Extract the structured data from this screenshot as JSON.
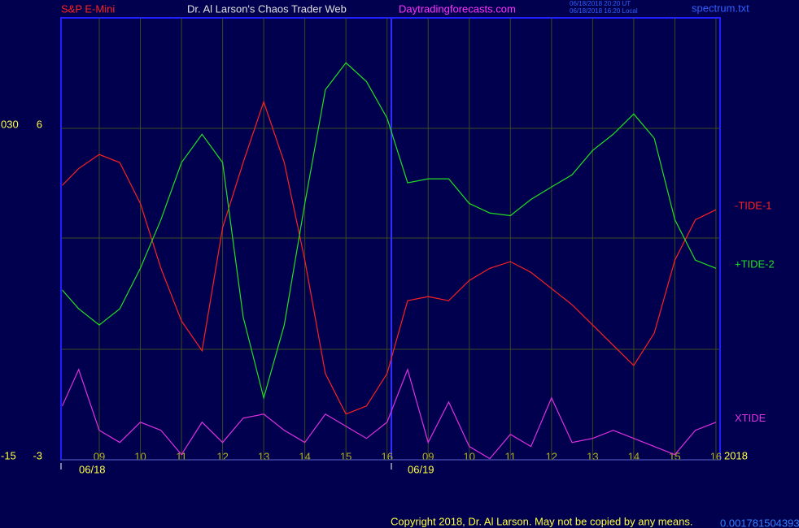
{
  "chart_data": {
    "type": "line",
    "header": [
      "S&P E-Mini",
      "Dr. Al Larson's Chaos Trader Web",
      "Daytradingforecasts.com"
    ],
    "timestamps": [
      "06/18/2018 20:20 UT",
      "06/18/2018 16:20 Local"
    ],
    "file": "spectrum.txt",
    "footer": "Copyright 2018, Dr. Al Larson. May not be copied by any means.",
    "footer_value": "0.0017815043931",
    "year": "2018",
    "day_labels": [
      "06/18",
      "06/19"
    ],
    "x": [
      8.1,
      8.5,
      9,
      9.5,
      10,
      10.5,
      11,
      11.5,
      12,
      12.5,
      13,
      13.5,
      14,
      14.5,
      15,
      15.5,
      16,
      16.5,
      17,
      17.5,
      18,
      18.5,
      19,
      19.5,
      20,
      20.5,
      21,
      21.5,
      22,
      22.5,
      23,
      23.5,
      24
    ],
    "series": [
      {
        "name": "-TIDE-1",
        "color": "#ff2020",
        "values": [
          4.45,
          4.91,
          5.29,
          5.07,
          3.96,
          2.2,
          0.77,
          -0.04,
          3.3,
          5.07,
          6.72,
          5.07,
          2.42,
          -0.66,
          -1.76,
          -1.54,
          -0.66,
          1.32,
          1.43,
          1.32,
          1.87,
          2.2,
          2.38,
          2.09,
          1.65,
          1.21,
          0.66,
          0.11,
          -0.44,
          0.44,
          2.42,
          3.52,
          3.79
        ]
      },
      {
        "name": "+TIDE-2",
        "color": "#20e020",
        "values": [
          1.61,
          1.1,
          0.66,
          1.1,
          2.2,
          3.52,
          5.07,
          5.84,
          5.07,
          0.88,
          -1.32,
          0.66,
          3.96,
          7.05,
          7.78,
          7.27,
          6.28,
          4.52,
          4.63,
          4.63,
          3.96,
          3.7,
          3.63,
          4.07,
          4.41,
          4.74,
          5.4,
          5.84,
          6.39,
          5.73,
          3.52,
          2.42,
          2.2
        ]
      },
      {
        "name": "XTIDE",
        "color": "#e030e0",
        "values": [
          -1.54,
          -0.55,
          -2.2,
          -2.53,
          -1.98,
          -2.2,
          -2.86,
          -1.98,
          -2.53,
          -1.87,
          -1.76,
          -2.2,
          -2.53,
          -1.76,
          -2.09,
          -2.42,
          -1.98,
          -0.55,
          -2.53,
          -1.43,
          -2.64,
          -2.97,
          -2.31,
          -2.64,
          -1.32,
          -2.53,
          -2.42,
          -2.2,
          -2.42,
          -2.64,
          -2.86,
          -2.2,
          -1.98
        ]
      }
    ],
    "xlim": [
      8.07,
      24.1
    ],
    "xticks": [
      {
        "value": 9,
        "label": "09"
      },
      10,
      11,
      12,
      13,
      14,
      15,
      16,
      {
        "value": 17,
        "label": "09"
      },
      {
        "value": 18,
        "label": "10"
      },
      {
        "value": 19,
        "label": "11"
      },
      {
        "value": 20,
        "label": "12"
      },
      {
        "value": 21,
        "label": "13"
      },
      {
        "value": 22,
        "label": "14"
      },
      {
        "value": 23,
        "label": "15"
      },
      {
        "value": 24,
        "label": "16"
      }
    ],
    "ylim": [
      -3,
      9
    ],
    "yticks": [
      -3,
      6
    ],
    "y2lim": [
      -15,
      45
    ],
    "y2ticks": [
      -15,
      {
        "value": 30,
        "label": "030"
      }
    ],
    "grid": true
  }
}
